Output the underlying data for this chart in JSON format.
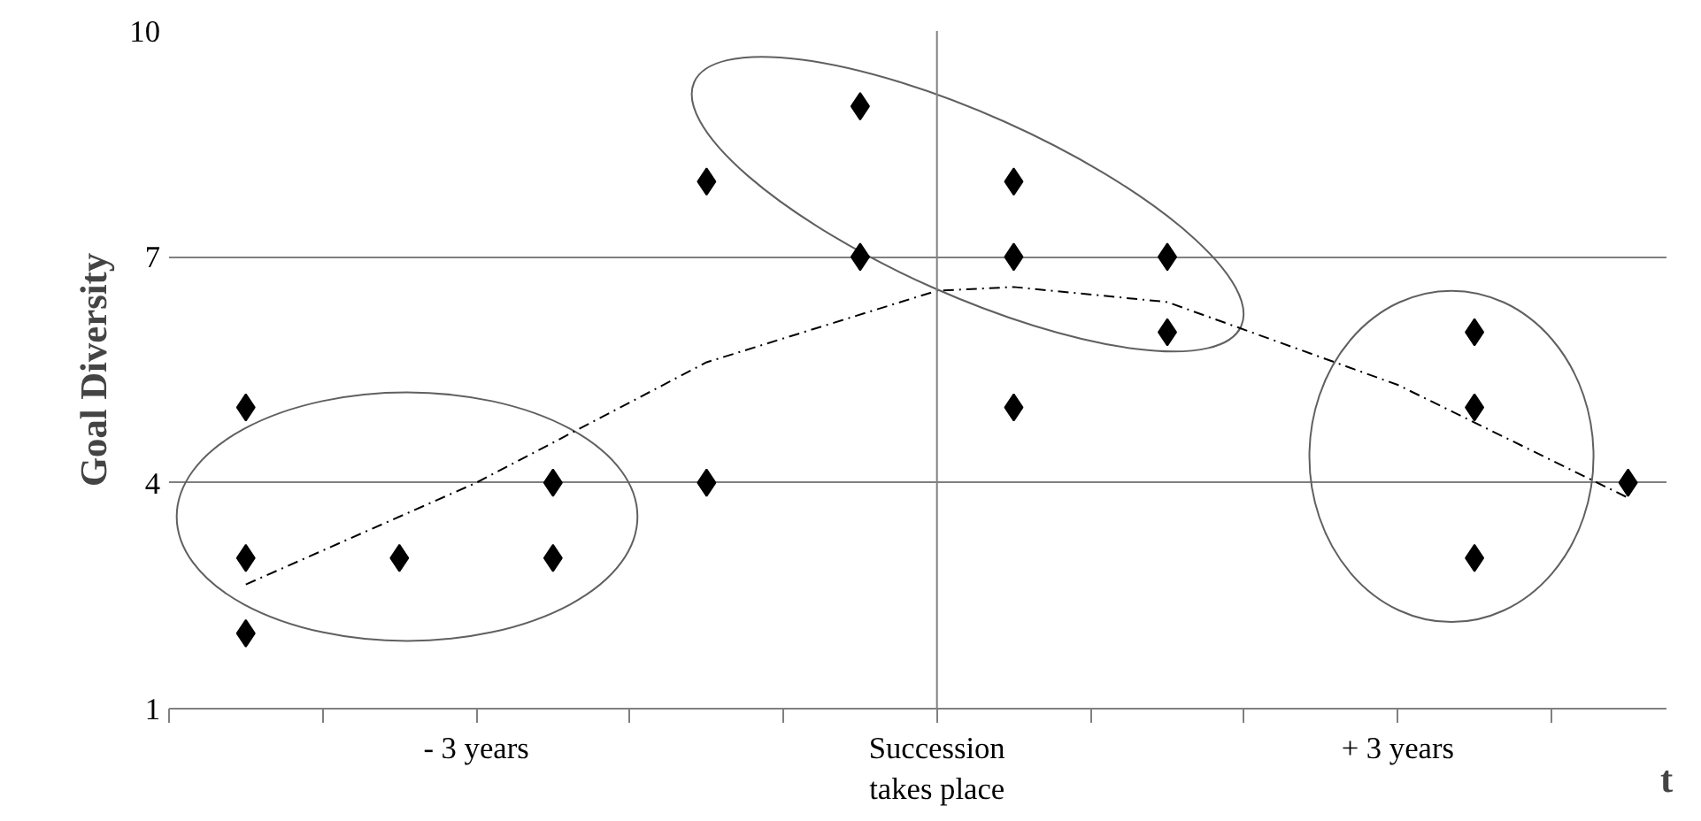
{
  "chart_data": {
    "type": "scatter",
    "ylabel": "Goal Diversity",
    "xlabel": "t",
    "xlim": [
      -5,
      4.75
    ],
    "ylim": [
      1,
      10
    ],
    "yticks": [
      1,
      4,
      7,
      10
    ],
    "xticks": [
      {
        "value": -5,
        "label": null
      },
      {
        "value": -4,
        "label": null
      },
      {
        "value": -3,
        "label": "- 3 years"
      },
      {
        "value": -2,
        "label": null
      },
      {
        "value": -1,
        "label": null
      },
      {
        "value": 0,
        "label": "Succession\ntakes place"
      },
      {
        "value": 1,
        "label": null
      },
      {
        "value": 2,
        "label": null
      },
      {
        "value": 3,
        "label": "+ 3 years"
      },
      {
        "value": 4,
        "label": null
      }
    ],
    "grid": "y",
    "marker": "diamond",
    "ref_lines": [
      {
        "axis": "x",
        "value": 0,
        "color": "#808080"
      }
    ],
    "series": [
      {
        "color": "#000000",
        "x": [
          -4.5,
          -4.5,
          -4.5,
          -3.5,
          -2.5,
          -2.5,
          -1.5,
          -1.5,
          -0.5,
          -0.5,
          0.5,
          0.5,
          0.5,
          1.5,
          1.5,
          3.5,
          3.5,
          3.5,
          4.5
        ],
        "values": [
          5,
          3,
          2,
          3,
          4,
          3,
          4,
          8,
          9,
          7,
          8,
          7,
          5,
          7,
          6,
          6,
          5,
          3,
          4
        ]
      },
      {
        "type": "line",
        "marker": "none",
        "line_style": "dashed",
        "color": "#000000",
        "x": [
          -4.5,
          -3,
          -1.5,
          0,
          0.5,
          1.5,
          3,
          4.5
        ],
        "values": [
          2.65,
          4.0,
          5.6,
          6.55,
          6.6,
          6.4,
          5.3,
          3.8
        ]
      }
    ]
  }
}
